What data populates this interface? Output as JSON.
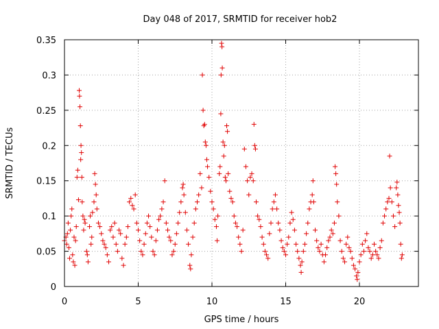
{
  "chart_data": {
    "type": "scatter",
    "title": "Day 048 of 2017, SRMTID for receiver hob2",
    "xlabel": "GPS time / hours",
    "ylabel": "SRMTID / TECUs",
    "xlim": [
      0,
      24
    ],
    "ylim": [
      0,
      0.35
    ],
    "xticks": [
      0,
      5,
      10,
      15,
      20
    ],
    "xtick_labels": [
      "0",
      "5",
      "10",
      "15",
      "20"
    ],
    "yticks": [
      0,
      0.05,
      0.1,
      0.15,
      0.2,
      0.25,
      0.3,
      0.35
    ],
    "ytick_labels": [
      "0",
      "0.05",
      "0.1",
      "0.15",
      "0.2",
      "0.25",
      "0.3",
      "0.35"
    ],
    "grid": true,
    "marker": "plus",
    "color": "#e00000",
    "series": [
      {
        "name": "SRMTID",
        "points": [
          [
            0.0,
            0.065
          ],
          [
            0.1,
            0.07
          ],
          [
            0.15,
            0.06
          ],
          [
            0.2,
            0.075
          ],
          [
            0.25,
            0.09
          ],
          [
            0.3,
            0.055
          ],
          [
            0.35,
            0.04
          ],
          [
            0.4,
            0.08
          ],
          [
            0.45,
            0.1
          ],
          [
            0.5,
            0.11
          ],
          [
            0.55,
            0.045
          ],
          [
            0.6,
            0.035
          ],
          [
            0.65,
            0.07
          ],
          [
            0.7,
            0.03
          ],
          [
            0.75,
            0.065
          ],
          [
            0.8,
            0.085
          ],
          [
            0.85,
            0.155
          ],
          [
            0.9,
            0.165
          ],
          [
            0.95,
            0.123
          ],
          [
            1.0,
            0.278
          ],
          [
            1.02,
            0.27
          ],
          [
            1.05,
            0.255
          ],
          [
            1.08,
            0.228
          ],
          [
            1.1,
            0.18
          ],
          [
            1.12,
            0.2
          ],
          [
            1.15,
            0.19
          ],
          [
            1.18,
            0.155
          ],
          [
            1.2,
            0.12
          ],
          [
            1.25,
            0.1
          ],
          [
            1.3,
            0.08
          ],
          [
            1.35,
            0.095
          ],
          [
            1.4,
            0.09
          ],
          [
            1.5,
            0.05
          ],
          [
            1.55,
            0.045
          ],
          [
            1.6,
            0.035
          ],
          [
            1.7,
            0.085
          ],
          [
            1.75,
            0.1
          ],
          [
            1.8,
            0.06
          ],
          [
            1.85,
            0.07
          ],
          [
            1.9,
            0.105
          ],
          [
            2.0,
            0.12
          ],
          [
            2.05,
            0.16
          ],
          [
            2.1,
            0.145
          ],
          [
            2.15,
            0.13
          ],
          [
            2.2,
            0.11
          ],
          [
            2.3,
            0.09
          ],
          [
            2.4,
            0.085
          ],
          [
            2.5,
            0.075
          ],
          [
            2.6,
            0.065
          ],
          [
            2.7,
            0.06
          ],
          [
            2.8,
            0.055
          ],
          [
            2.9,
            0.045
          ],
          [
            3.0,
            0.035
          ],
          [
            3.1,
            0.08
          ],
          [
            3.2,
            0.085
          ],
          [
            3.3,
            0.07
          ],
          [
            3.4,
            0.09
          ],
          [
            3.5,
            0.06
          ],
          [
            3.6,
            0.05
          ],
          [
            3.7,
            0.08
          ],
          [
            3.8,
            0.075
          ],
          [
            3.9,
            0.04
          ],
          [
            4.0,
            0.03
          ],
          [
            4.1,
            0.06
          ],
          [
            4.2,
            0.07
          ],
          [
            4.3,
            0.085
          ],
          [
            4.4,
            0.12
          ],
          [
            4.5,
            0.125
          ],
          [
            4.6,
            0.115
          ],
          [
            4.7,
            0.11
          ],
          [
            4.8,
            0.13
          ],
          [
            4.9,
            0.09
          ],
          [
            5.0,
            0.08
          ],
          [
            5.1,
            0.065
          ],
          [
            5.2,
            0.05
          ],
          [
            5.3,
            0.045
          ],
          [
            5.4,
            0.06
          ],
          [
            5.5,
            0.075
          ],
          [
            5.6,
            0.09
          ],
          [
            5.7,
            0.1
          ],
          [
            5.8,
            0.085
          ],
          [
            5.9,
            0.07
          ],
          [
            6.0,
            0.05
          ],
          [
            6.1,
            0.045
          ],
          [
            6.2,
            0.065
          ],
          [
            6.3,
            0.08
          ],
          [
            6.4,
            0.095
          ],
          [
            6.5,
            0.1
          ],
          [
            6.6,
            0.11
          ],
          [
            6.7,
            0.12
          ],
          [
            6.8,
            0.15
          ],
          [
            6.9,
            0.09
          ],
          [
            7.0,
            0.08
          ],
          [
            7.1,
            0.07
          ],
          [
            7.2,
            0.065
          ],
          [
            7.3,
            0.045
          ],
          [
            7.4,
            0.05
          ],
          [
            7.5,
            0.06
          ],
          [
            7.6,
            0.075
          ],
          [
            7.7,
            0.09
          ],
          [
            7.8,
            0.105
          ],
          [
            7.9,
            0.12
          ],
          [
            8.0,
            0.14
          ],
          [
            8.05,
            0.145
          ],
          [
            8.1,
            0.13
          ],
          [
            8.2,
            0.105
          ],
          [
            8.3,
            0.08
          ],
          [
            8.4,
            0.06
          ],
          [
            8.5,
            0.03
          ],
          [
            8.55,
            0.025
          ],
          [
            8.6,
            0.045
          ],
          [
            8.7,
            0.07
          ],
          [
            8.8,
            0.09
          ],
          [
            8.9,
            0.11
          ],
          [
            9.0,
            0.12
          ],
          [
            9.1,
            0.13
          ],
          [
            9.2,
            0.16
          ],
          [
            9.3,
            0.14
          ],
          [
            9.35,
            0.3
          ],
          [
            9.4,
            0.25
          ],
          [
            9.45,
            0.228
          ],
          [
            9.5,
            0.23
          ],
          [
            9.55,
            0.205
          ],
          [
            9.6,
            0.2
          ],
          [
            9.65,
            0.18
          ],
          [
            9.7,
            0.17
          ],
          [
            9.8,
            0.155
          ],
          [
            9.9,
            0.135
          ],
          [
            10.0,
            0.12
          ],
          [
            10.1,
            0.11
          ],
          [
            10.2,
            0.095
          ],
          [
            10.3,
            0.085
          ],
          [
            10.35,
            0.065
          ],
          [
            10.4,
            0.1
          ],
          [
            10.5,
            0.16
          ],
          [
            10.55,
            0.17
          ],
          [
            10.6,
            0.245
          ],
          [
            10.62,
            0.3
          ],
          [
            10.65,
            0.345
          ],
          [
            10.68,
            0.34
          ],
          [
            10.7,
            0.31
          ],
          [
            10.75,
            0.205
          ],
          [
            10.8,
            0.185
          ],
          [
            10.85,
            0.2
          ],
          [
            10.9,
            0.155
          ],
          [
            10.95,
            0.15
          ],
          [
            11.0,
            0.228
          ],
          [
            11.05,
            0.22
          ],
          [
            11.1,
            0.16
          ],
          [
            11.2,
            0.135
          ],
          [
            11.3,
            0.125
          ],
          [
            11.4,
            0.12
          ],
          [
            11.5,
            0.1
          ],
          [
            11.6,
            0.09
          ],
          [
            11.7,
            0.085
          ],
          [
            11.8,
            0.07
          ],
          [
            11.9,
            0.06
          ],
          [
            12.0,
            0.05
          ],
          [
            12.1,
            0.08
          ],
          [
            12.2,
            0.195
          ],
          [
            12.3,
            0.17
          ],
          [
            12.4,
            0.15
          ],
          [
            12.5,
            0.13
          ],
          [
            12.6,
            0.155
          ],
          [
            12.7,
            0.16
          ],
          [
            12.8,
            0.15
          ],
          [
            12.85,
            0.23
          ],
          [
            12.9,
            0.2
          ],
          [
            12.95,
            0.195
          ],
          [
            13.0,
            0.12
          ],
          [
            13.1,
            0.1
          ],
          [
            13.2,
            0.095
          ],
          [
            13.3,
            0.085
          ],
          [
            13.4,
            0.07
          ],
          [
            13.5,
            0.06
          ],
          [
            13.6,
            0.05
          ],
          [
            13.7,
            0.045
          ],
          [
            13.8,
            0.04
          ],
          [
            13.9,
            0.075
          ],
          [
            14.0,
            0.09
          ],
          [
            14.1,
            0.11
          ],
          [
            14.2,
            0.12
          ],
          [
            14.3,
            0.13
          ],
          [
            14.4,
            0.11
          ],
          [
            14.5,
            0.09
          ],
          [
            14.6,
            0.08
          ],
          [
            14.7,
            0.065
          ],
          [
            14.8,
            0.055
          ],
          [
            14.9,
            0.05
          ],
          [
            15.0,
            0.045
          ],
          [
            15.1,
            0.06
          ],
          [
            15.2,
            0.07
          ],
          [
            15.3,
            0.09
          ],
          [
            15.4,
            0.105
          ],
          [
            15.5,
            0.095
          ],
          [
            15.6,
            0.08
          ],
          [
            15.7,
            0.06
          ],
          [
            15.8,
            0.05
          ],
          [
            15.9,
            0.04
          ],
          [
            16.0,
            0.03
          ],
          [
            16.05,
            0.02
          ],
          [
            16.1,
            0.035
          ],
          [
            16.2,
            0.05
          ],
          [
            16.3,
            0.06
          ],
          [
            16.4,
            0.075
          ],
          [
            16.5,
            0.09
          ],
          [
            16.6,
            0.11
          ],
          [
            16.7,
            0.12
          ],
          [
            16.8,
            0.13
          ],
          [
            16.85,
            0.15
          ],
          [
            16.9,
            0.12
          ],
          [
            17.0,
            0.08
          ],
          [
            17.1,
            0.065
          ],
          [
            17.2,
            0.055
          ],
          [
            17.3,
            0.05
          ],
          [
            17.4,
            0.06
          ],
          [
            17.5,
            0.045
          ],
          [
            17.6,
            0.035
          ],
          [
            17.7,
            0.045
          ],
          [
            17.8,
            0.055
          ],
          [
            17.9,
            0.065
          ],
          [
            18.0,
            0.07
          ],
          [
            18.1,
            0.08
          ],
          [
            18.2,
            0.075
          ],
          [
            18.3,
            0.09
          ],
          [
            18.35,
            0.17
          ],
          [
            18.4,
            0.16
          ],
          [
            18.45,
            0.145
          ],
          [
            18.5,
            0.12
          ],
          [
            18.6,
            0.1
          ],
          [
            18.7,
            0.065
          ],
          [
            18.8,
            0.05
          ],
          [
            18.9,
            0.04
          ],
          [
            19.0,
            0.035
          ],
          [
            19.1,
            0.06
          ],
          [
            19.2,
            0.07
          ],
          [
            19.3,
            0.055
          ],
          [
            19.4,
            0.05
          ],
          [
            19.5,
            0.04
          ],
          [
            19.6,
            0.03
          ],
          [
            19.7,
            0.025
          ],
          [
            19.8,
            0.015
          ],
          [
            19.85,
            0.01
          ],
          [
            19.9,
            0.02
          ],
          [
            20.0,
            0.035
          ],
          [
            20.1,
            0.045
          ],
          [
            20.2,
            0.06
          ],
          [
            20.3,
            0.05
          ],
          [
            20.4,
            0.065
          ],
          [
            20.5,
            0.075
          ],
          [
            20.6,
            0.055
          ],
          [
            20.7,
            0.05
          ],
          [
            20.8,
            0.04
          ],
          [
            20.9,
            0.045
          ],
          [
            21.0,
            0.06
          ],
          [
            21.1,
            0.05
          ],
          [
            21.2,
            0.045
          ],
          [
            21.3,
            0.04
          ],
          [
            21.4,
            0.055
          ],
          [
            21.5,
            0.065
          ],
          [
            21.6,
            0.09
          ],
          [
            21.7,
            0.1
          ],
          [
            21.8,
            0.11
          ],
          [
            21.9,
            0.12
          ],
          [
            22.0,
            0.125
          ],
          [
            22.05,
            0.185
          ],
          [
            22.1,
            0.14
          ],
          [
            22.2,
            0.12
          ],
          [
            22.3,
            0.1
          ],
          [
            22.4,
            0.085
          ],
          [
            22.5,
            0.14
          ],
          [
            22.55,
            0.148
          ],
          [
            22.6,
            0.13
          ],
          [
            22.65,
            0.115
          ],
          [
            22.7,
            0.105
          ],
          [
            22.75,
            0.09
          ],
          [
            22.8,
            0.06
          ],
          [
            22.85,
            0.04
          ],
          [
            22.9,
            0.045
          ]
        ]
      }
    ]
  }
}
